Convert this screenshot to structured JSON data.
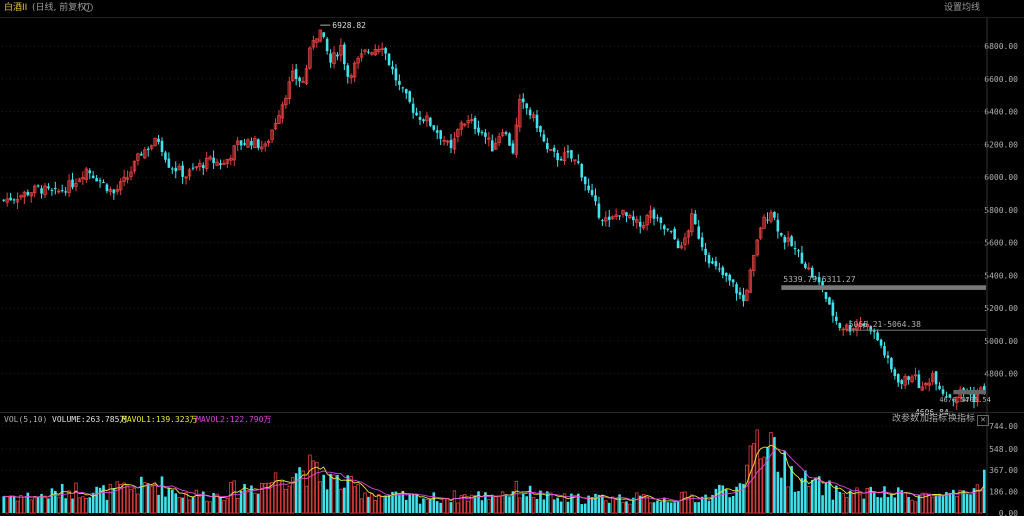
{
  "header": {
    "title": "白酒II",
    "period": "(日线, 前复权)",
    "settings_label": "设置均线"
  },
  "volume_header": {
    "indicator": "VOL(5,10)",
    "volume": "VOLUME:263.785万",
    "mavol1": "MAVOL1:139.323万",
    "mavol2": "MAVOL2:122.790万",
    "buttons": [
      "改参数",
      "加指标",
      "换指标"
    ],
    "close": "✕"
  },
  "colors": {
    "up": "#e84040",
    "down": "#3fe3ee",
    "ma1": "#e8e832",
    "ma2": "#e040e0",
    "grid": "#3a3a3a",
    "text": "#b0b0b0"
  },
  "chart_data": [
    {
      "type": "candlestick",
      "title": "",
      "ylim": [
        4590,
        6960
      ],
      "y_ticks": [
        "6800.00",
        "6600.00",
        "6400.00",
        "6200.00",
        "6000.00",
        "5800.00",
        "5600.00",
        "5400.00",
        "5200.00",
        "5000.00",
        "4800.00"
      ],
      "y_tick_values": [
        6800,
        6600,
        6400,
        6200,
        6000,
        5800,
        5600,
        5400,
        5200,
        5000,
        4800
      ],
      "annotations": [
        {
          "text": "6928.82",
          "value": 6928.82
        },
        {
          "text": "5339.79-5311.27",
          "low": 5311.27,
          "high": 5339.79
        },
        {
          "text": "5065.21-5064.38",
          "low": 5064.38,
          "high": 5065.21
        },
        {
          "text": "4606.84",
          "value": 4606.84
        },
        {
          "text": "4676.54",
          "low": 4674,
          "high": 4700
        },
        {
          "text": "4705.54",
          "value": 4705.54
        }
      ],
      "close_path": [
        [
          0,
          5860
        ],
        [
          5,
          5890
        ],
        [
          10,
          5930
        ],
        [
          15,
          5900
        ],
        [
          20,
          5960
        ],
        [
          24,
          6050
        ],
        [
          28,
          5980
        ],
        [
          32,
          5900
        ],
        [
          36,
          6000
        ],
        [
          40,
          6150
        ],
        [
          45,
          6230
        ],
        [
          48,
          6080
        ],
        [
          53,
          6010
        ],
        [
          56,
          6060
        ],
        [
          60,
          6100
        ],
        [
          64,
          6080
        ],
        [
          68,
          6200
        ],
        [
          72,
          6220
        ],
        [
          76,
          6180
        ],
        [
          80,
          6400
        ],
        [
          84,
          6620
        ],
        [
          87,
          6580
        ],
        [
          90,
          6850
        ],
        [
          92,
          6890
        ],
        [
          95,
          6700
        ],
        [
          98,
          6800
        ],
        [
          100,
          6620
        ],
        [
          102,
          6680
        ],
        [
          105,
          6760
        ],
        [
          108,
          6790
        ],
        [
          110,
          6810
        ],
        [
          112,
          6700
        ],
        [
          115,
          6550
        ],
        [
          118,
          6450
        ],
        [
          120,
          6380
        ],
        [
          123,
          6350
        ],
        [
          126,
          6280
        ],
        [
          128,
          6230
        ],
        [
          130,
          6160
        ],
        [
          133,
          6340
        ],
        [
          136,
          6330
        ],
        [
          139,
          6280
        ],
        [
          142,
          6180
        ],
        [
          145,
          6300
        ],
        [
          148,
          6160
        ],
        [
          150,
          6450
        ],
        [
          152,
          6420
        ],
        [
          155,
          6320
        ],
        [
          158,
          6160
        ],
        [
          161,
          6120
        ],
        [
          164,
          6130
        ],
        [
          167,
          6080
        ],
        [
          170,
          5910
        ],
        [
          173,
          5780
        ],
        [
          176,
          5720
        ],
        [
          179,
          5790
        ],
        [
          182,
          5740
        ],
        [
          185,
          5700
        ],
        [
          188,
          5780
        ],
        [
          191,
          5700
        ],
        [
          194,
          5650
        ],
        [
          197,
          5560
        ],
        [
          200,
          5750
        ],
        [
          203,
          5590
        ],
        [
          206,
          5460
        ],
        [
          209,
          5400
        ],
        [
          212,
          5340
        ],
        [
          215,
          5240
        ],
        [
          218,
          5500
        ],
        [
          220,
          5700
        ],
        [
          223,
          5800
        ],
        [
          226,
          5640
        ],
        [
          229,
          5580
        ],
        [
          232,
          5500
        ],
        [
          235,
          5400
        ],
        [
          238,
          5320
        ],
        [
          240,
          5200
        ],
        [
          243,
          5090
        ],
        [
          246,
          5080
        ],
        [
          249,
          5110
        ],
        [
          252,
          5080
        ],
        [
          255,
          4970
        ],
        [
          258,
          4820
        ],
        [
          261,
          4740
        ],
        [
          264,
          4800
        ],
        [
          267,
          4700
        ],
        [
          270,
          4800
        ],
        [
          273,
          4690
        ],
        [
          276,
          4650
        ],
        [
          279,
          4700
        ],
        [
          282,
          4650
        ],
        [
          285,
          4720
        ]
      ]
    },
    {
      "type": "bar",
      "title": "",
      "ylim": [
        0,
        744
      ],
      "y_ticks": [
        "744.00",
        "548.00",
        "367.00",
        "186.00",
        "0.00"
      ],
      "y_tick_values": [
        744,
        548,
        367,
        186,
        0
      ],
      "volume_path": [
        [
          0,
          150
        ],
        [
          10,
          140
        ],
        [
          20,
          200
        ],
        [
          30,
          180
        ],
        [
          45,
          250
        ],
        [
          52,
          160
        ],
        [
          60,
          150
        ],
        [
          75,
          250
        ],
        [
          80,
          300
        ],
        [
          84,
          360
        ],
        [
          88,
          380
        ],
        [
          92,
          320
        ],
        [
          98,
          260
        ],
        [
          105,
          180
        ],
        [
          112,
          140
        ],
        [
          125,
          130
        ],
        [
          140,
          150
        ],
        [
          150,
          200
        ],
        [
          160,
          120
        ],
        [
          175,
          130
        ],
        [
          190,
          120
        ],
        [
          205,
          140
        ],
        [
          210,
          230
        ],
        [
          215,
          180
        ],
        [
          218,
          700
        ],
        [
          220,
          640
        ],
        [
          223,
          620
        ],
        [
          226,
          420
        ],
        [
          230,
          300
        ],
        [
          235,
          250
        ],
        [
          242,
          180
        ],
        [
          250,
          170
        ],
        [
          260,
          160
        ],
        [
          270,
          150
        ],
        [
          280,
          140
        ],
        [
          285,
          300
        ]
      ]
    }
  ]
}
